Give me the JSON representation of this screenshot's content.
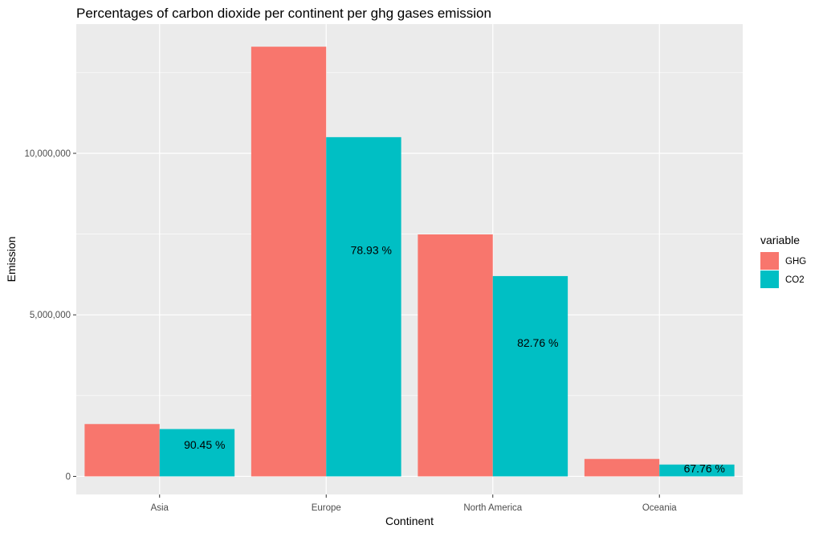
{
  "chart_data": {
    "type": "bar",
    "title": "Percentages of carbon dioxide per continent per ghg gases emission",
    "xlabel": "Continent",
    "ylabel": "Emission",
    "categories": [
      "Asia",
      "Europe",
      "North America",
      "Oceania"
    ],
    "series": [
      {
        "name": "GHG",
        "values": [
          1620000,
          13300000,
          7490000,
          540000
        ],
        "color": "#F8766D"
      },
      {
        "name": "CO2",
        "values": [
          1465000,
          10500000,
          6200000,
          366000
        ],
        "color": "#00BFC4"
      }
    ],
    "data_labels": [
      "90.45 %",
      "78.93 %",
      "82.76 %",
      "67.76 %"
    ],
    "yticks": [
      0,
      5000000,
      10000000
    ],
    "ytick_labels": [
      "0",
      "5,000,000",
      "10,000,000"
    ],
    "ylim": [
      -560000,
      14000000
    ],
    "grid": true,
    "legend": {
      "title": "variable",
      "position": "right"
    },
    "panel_background": "#EBEBEB",
    "grid_color": "#FFFFFF"
  }
}
